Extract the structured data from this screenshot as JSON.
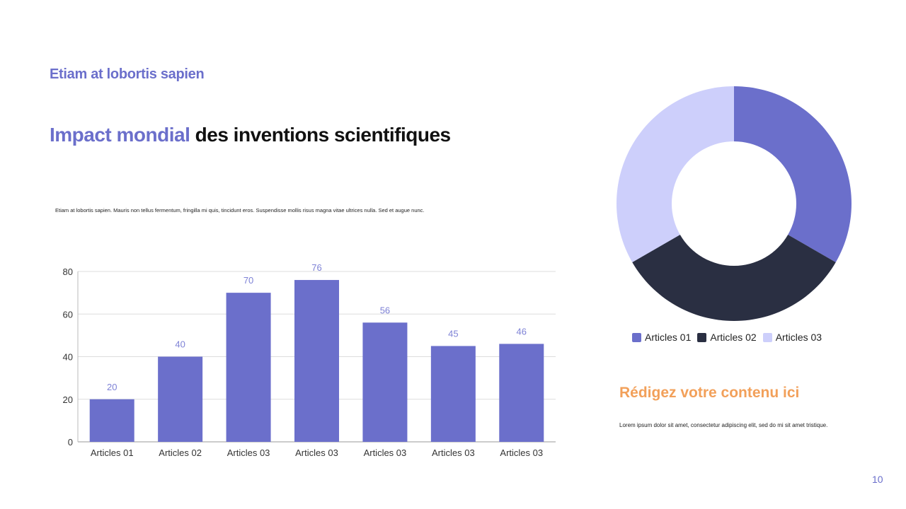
{
  "kicker": "Etiam at lobortis sapien",
  "title": {
    "accent": "Impact mondial",
    "rest": " des inventions scientifiques"
  },
  "paragraph": "Etiam at lobortis sapien. Mauris non tellus fermentum, fringilla mi quis, tincidunt eros. Suspendisse mollis risus magna vitae ultrices nulla. Sed et augue nunc.",
  "subhead": "Rédigez votre contenu ici",
  "body": "Lorem ipsum dolor sit amet, consectetur adipiscing elit, sed do mi sit amet tristique.",
  "page_number": "10",
  "chart_data": [
    {
      "type": "bar",
      "categories": [
        "Articles 01",
        "Articles 02",
        "Articles 03",
        "Articles 03",
        "Articles 03",
        "Articles 03",
        "Articles 03"
      ],
      "values": [
        20,
        40,
        70,
        76,
        56,
        45,
        46
      ],
      "ylim": [
        0,
        80
      ],
      "yticks": [
        "0",
        "20",
        "40",
        "60",
        "80"
      ],
      "grid": true,
      "data_labels": true,
      "color": "#6B6FCB",
      "label_color": "#7E82D6"
    },
    {
      "type": "pie",
      "donut": true,
      "categories": [
        "Articles 01",
        "Articles 02",
        "Articles 03"
      ],
      "values": [
        33.3,
        33.3,
        33.3
      ],
      "colors": [
        "#6B6FCB",
        "#2A2F42",
        "#CDCFFB"
      ],
      "legend": "bottom"
    }
  ]
}
